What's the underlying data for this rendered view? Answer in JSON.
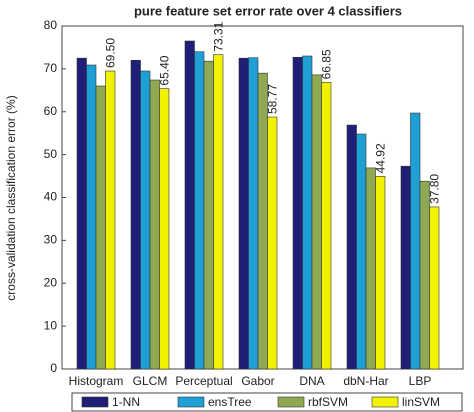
{
  "chart_data": {
    "type": "bar",
    "title": "pure feature set error rate over 4 classifiers",
    "y_label": "cross-validation classification error (%)",
    "categories": [
      "Histogram",
      "GLCM",
      "Perceptual",
      "Gabor",
      "DNA",
      "dbN-Har",
      "LBP"
    ],
    "series": [
      {
        "name": "1-NN",
        "color": "#1f1f78",
        "values": [
          72.5,
          72,
          76.5,
          72.5,
          72.7,
          56.9,
          47.3
        ]
      },
      {
        "name": "ensTree",
        "color": "#1e9fd6",
        "values": [
          70.9,
          69.5,
          74,
          72.6,
          73,
          54.8,
          59.7
        ]
      },
      {
        "name": "rbfSVM",
        "color": "#8fa852",
        "values": [
          66,
          67.4,
          71.8,
          69,
          68.6,
          46.9,
          43.8
        ]
      },
      {
        "name": "linSVM",
        "color": "#f2f200",
        "values": [
          69.5,
          65.4,
          73.31,
          58.77,
          66.85,
          44.92,
          37.8
        ],
        "value_labels": [
          "69.50",
          "65.40",
          "73.31",
          "58.77",
          "66.85",
          "44.92",
          "37.80"
        ]
      }
    ],
    "ylim": [
      0,
      80
    ],
    "yticks": [
      0,
      10,
      20,
      30,
      40,
      50,
      60,
      70,
      80
    ]
  }
}
